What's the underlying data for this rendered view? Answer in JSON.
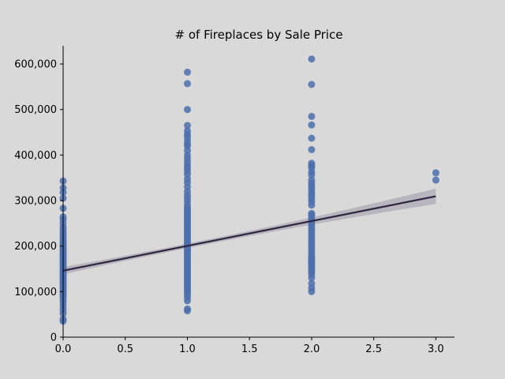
{
  "chart_data": {
    "type": "scatter",
    "title": "# of Fireplaces by Sale Price",
    "xlabel": "",
    "ylabel": "",
    "xlim": [
      0,
      3.15
    ],
    "ylim": [
      0,
      640000
    ],
    "x_ticks": [
      0.0,
      0.5,
      1.0,
      1.5,
      2.0,
      2.5,
      3.0
    ],
    "x_tick_labels": [
      "0.0",
      "0.5",
      "1.0",
      "1.5",
      "2.0",
      "2.5",
      "3.0"
    ],
    "y_ticks": [
      0,
      100000,
      200000,
      300000,
      400000,
      500000,
      600000
    ],
    "y_tick_labels": [
      "0",
      "100,000",
      "200,000",
      "300,000",
      "400,000",
      "500,000",
      "600,000"
    ],
    "grid": false,
    "colors": {
      "point": "#4c6fad",
      "regression_line": "#2d2640",
      "confidence_band": "#b0aeb8",
      "background": "#d9d9d9"
    },
    "series": [
      {
        "x": 0,
        "y": [
          35000,
          40000,
          52000,
          60000,
          68000,
          75000,
          82000,
          88000,
          92000,
          96000,
          100000,
          104000,
          108000,
          112000,
          115000,
          118000,
          121000,
          124000,
          127000,
          130000,
          133000,
          136000,
          139000,
          142000,
          145000,
          148000,
          151000,
          154000,
          157000,
          160000,
          163000,
          166000,
          169000,
          172000,
          175000,
          178000,
          181000,
          184000,
          187000,
          190000,
          194000,
          198000,
          202000,
          206000,
          210000,
          215000,
          220000,
          225000,
          230000,
          236000,
          242000,
          250000,
          258000,
          264000,
          283000,
          305000,
          318000,
          328000,
          343000
        ]
      },
      {
        "x": 1,
        "y": [
          58000,
          62000,
          80000,
          87000,
          93000,
          98000,
          103000,
          108000,
          112000,
          116000,
          120000,
          124000,
          128000,
          132000,
          136000,
          140000,
          144000,
          148000,
          152000,
          156000,
          160000,
          164000,
          168000,
          172000,
          176000,
          180000,
          184000,
          188000,
          192000,
          196000,
          200000,
          204000,
          208000,
          212000,
          216000,
          220000,
          224000,
          228000,
          232000,
          236000,
          240000,
          244000,
          248000,
          252000,
          256000,
          260000,
          264000,
          268000,
          272000,
          276000,
          280000,
          285000,
          290000,
          298000,
          305000,
          312000,
          320000,
          330000,
          340000,
          348000,
          358000,
          365000,
          372000,
          378000,
          385000,
          393000,
          400000,
          410000,
          420000,
          425000,
          432000,
          440000,
          446000,
          453000,
          465000,
          500000,
          557000,
          582000
        ]
      },
      {
        "x": 2,
        "y": [
          100000,
          108000,
          118000,
          130000,
          138000,
          143000,
          148000,
          153000,
          158000,
          162000,
          166000,
          170000,
          175000,
          180000,
          187000,
          193000,
          200000,
          207000,
          213000,
          220000,
          226000,
          232000,
          238000,
          244000,
          250000,
          256000,
          262000,
          268000,
          272000,
          290000,
          298000,
          305000,
          312000,
          318000,
          325000,
          332000,
          338000,
          345000,
          356000,
          363000,
          372000,
          377000,
          382000,
          412000,
          437000,
          466000,
          485000,
          555000,
          611000
        ]
      },
      {
        "x": 3,
        "y": [
          345000,
          361000
        ]
      }
    ],
    "regression": {
      "x_range": [
        0,
        3
      ],
      "intercept": 146000,
      "slope": 54500,
      "ci_halfwidth_min": 5000,
      "ci_halfwidth_max": 17000,
      "ci_center_x": 1.0
    }
  }
}
